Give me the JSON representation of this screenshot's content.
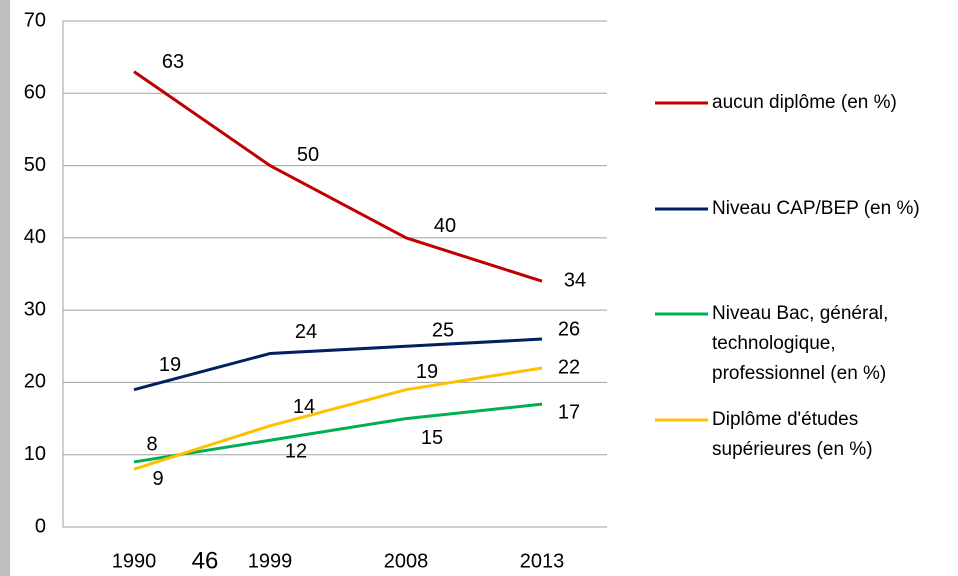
{
  "chart_data": {
    "type": "line",
    "categories": [
      "1990",
      "1999",
      "2008",
      "2013"
    ],
    "series": [
      {
        "name": "aucun diplôme (en %)",
        "color": "#c00000",
        "values": [
          63,
          50,
          40,
          34
        ]
      },
      {
        "name": "Niveau CAP/BEP (en %)",
        "color": "#002060",
        "values": [
          19,
          24,
          25,
          26
        ]
      },
      {
        "name": "Niveau Bac, général, technologique, professionnel (en %)",
        "color": "#00b050",
        "values": [
          9,
          12,
          15,
          17
        ]
      },
      {
        "name": "Diplôme d'études supérieures (en %)",
        "color": "#ffc000",
        "values": [
          8,
          14,
          19,
          22
        ]
      }
    ],
    "ylim": [
      0,
      70
    ],
    "yticks": [
      0,
      10,
      20,
      30,
      40,
      50,
      60,
      70
    ],
    "grid": true,
    "legend": "right"
  },
  "page_number": "46"
}
